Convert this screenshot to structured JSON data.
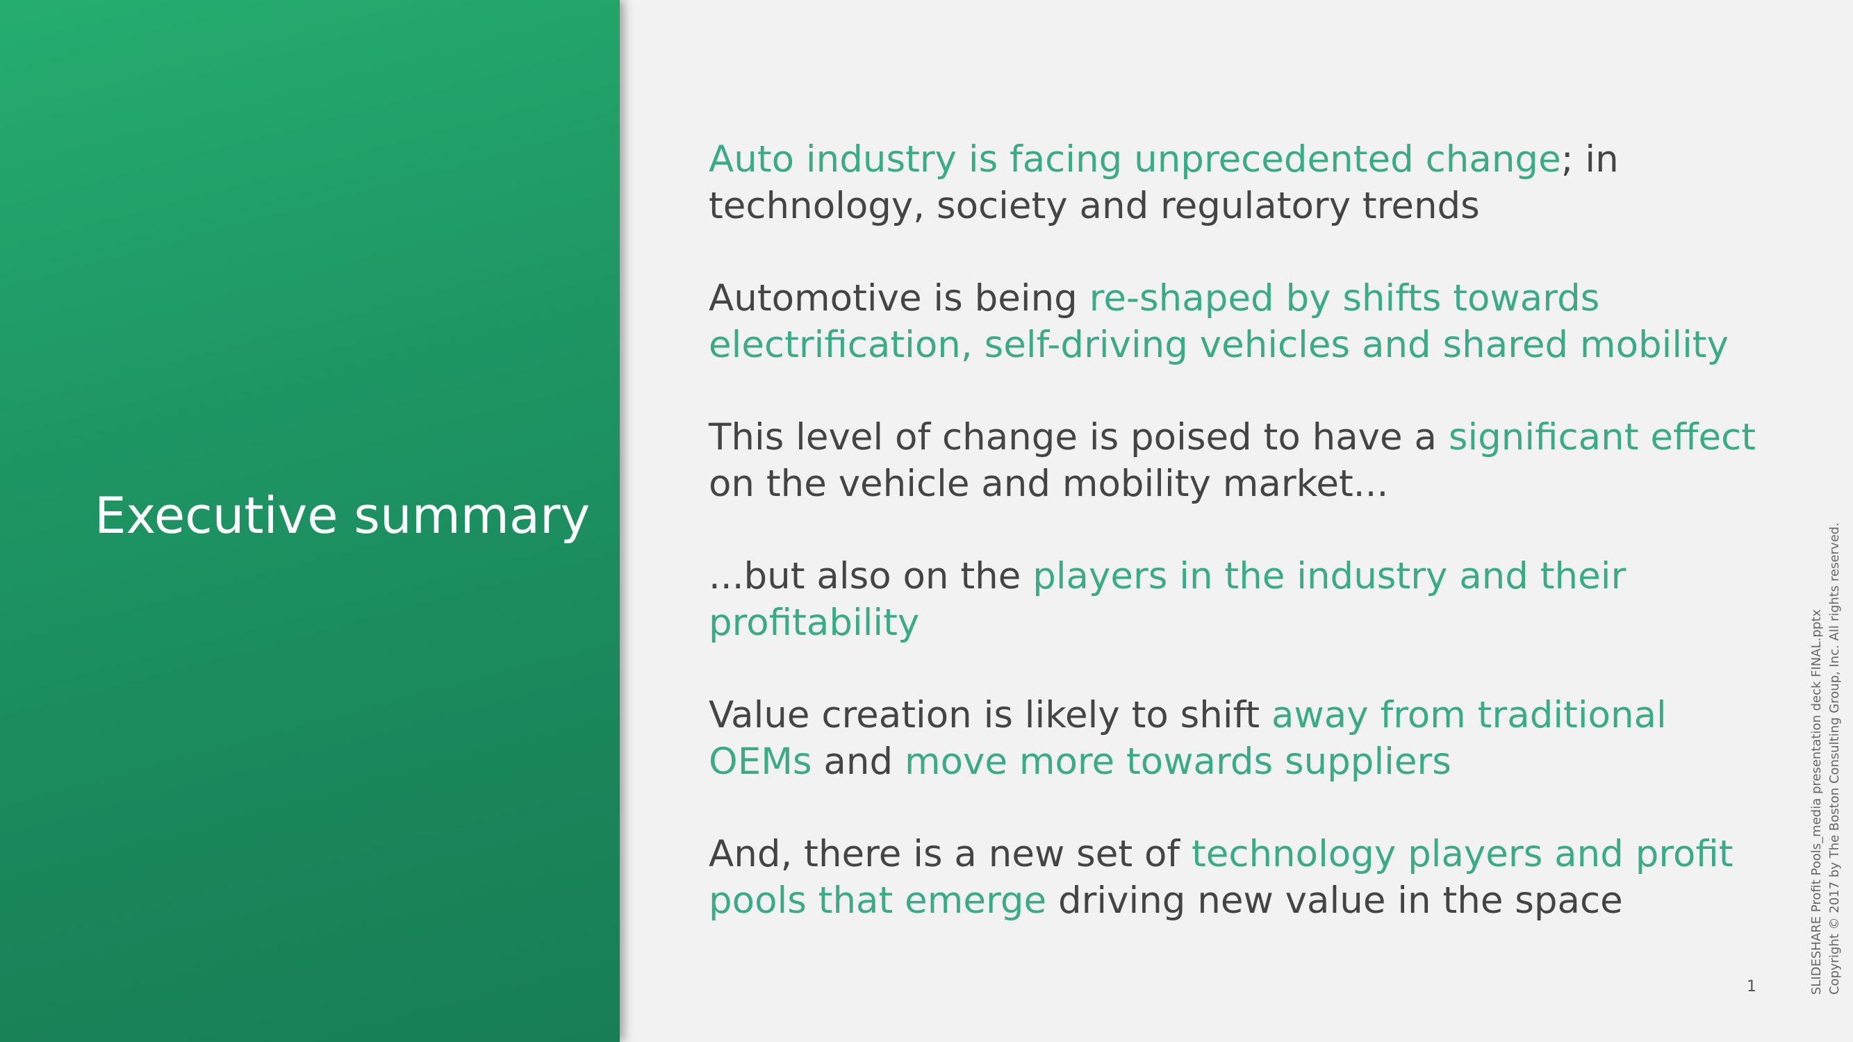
{
  "slide": {
    "title": "Executive summary",
    "page_number": "1",
    "footer": {
      "file_line": "SLIDESHARE Profit Pools_media presentation deck FINAL.pptx",
      "copyright_line": "Copyright © 2017 by The Boston Consulting Group, Inc. All rights reserved."
    },
    "colors": {
      "panel_green": "#1f9865",
      "highlight_teal": "#3aaa88",
      "body_text": "#444444",
      "background": "#f2f2f2"
    },
    "paragraphs": [
      {
        "segments": [
          {
            "text": "Auto industry is facing unprecedented change",
            "highlight": true
          },
          {
            "text": "; in technology, society and regulatory trends",
            "highlight": false
          }
        ]
      },
      {
        "segments": [
          {
            "text": "Automotive is being ",
            "highlight": false
          },
          {
            "text": "re-shaped by shifts towards electrification, self-driving vehicles and shared mobility",
            "highlight": true
          }
        ]
      },
      {
        "segments": [
          {
            "text": "This level of change is poised to have a ",
            "highlight": false
          },
          {
            "text": "significant effect",
            "highlight": true
          },
          {
            "text": " on the vehicle and mobility market...",
            "highlight": false
          }
        ]
      },
      {
        "segments": [
          {
            "text": "...but also on the ",
            "highlight": false
          },
          {
            "text": "players in the industry and their profitability",
            "highlight": true
          }
        ]
      },
      {
        "segments": [
          {
            "text": "Value creation is likely to shift ",
            "highlight": false
          },
          {
            "text": "away from traditional OEMs",
            "highlight": true
          },
          {
            "text": " and ",
            "highlight": false
          },
          {
            "text": "move more towards suppliers",
            "highlight": true
          }
        ]
      },
      {
        "segments": [
          {
            "text": "And, there is a new set of ",
            "highlight": false
          },
          {
            "text": "technology players and profit pools that emerge",
            "highlight": true
          },
          {
            "text": " driving new value in the space",
            "highlight": false
          }
        ]
      }
    ]
  }
}
